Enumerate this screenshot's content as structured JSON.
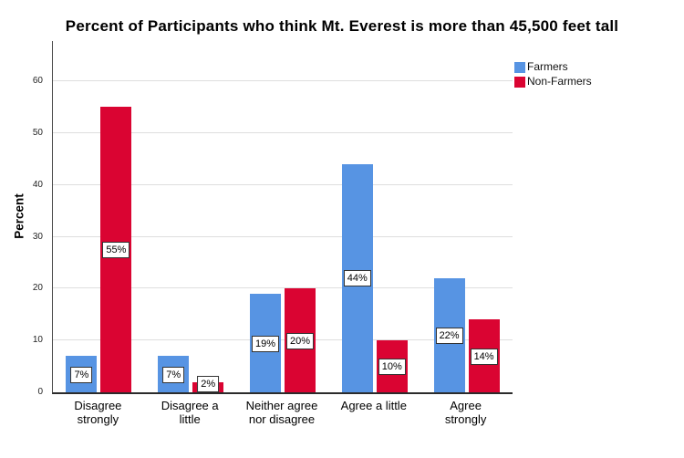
{
  "title": "Percent of Participants who think Mt. Everest is more than 45,500 feet tall",
  "y_axis": {
    "label": "Percent"
  },
  "legend": {
    "items": [
      {
        "label": "Farmers",
        "color": "#5794E3"
      },
      {
        "label": "Non-Farmers",
        "color": "#DA0432"
      }
    ]
  },
  "chart_data": {
    "type": "bar",
    "title": "Percent of Participants who think Mt. Everest is more than 45,500 feet tall",
    "categories": [
      "Disagree strongly",
      "Disagree a little",
      "Neither agree nor disagree",
      "Agree a little",
      "Agree strongly"
    ],
    "category_label_lines": [
      [
        "Disagree",
        "strongly"
      ],
      [
        "Disagree a",
        "little"
      ],
      [
        "Neither agree",
        "nor disagree"
      ],
      [
        "Agree a little"
      ],
      [
        "Agree",
        "strongly"
      ]
    ],
    "series": [
      {
        "name": "Farmers",
        "color": "#5794E3",
        "values": [
          7,
          7,
          19,
          44,
          22
        ],
        "labels": [
          "7%",
          "7%",
          "19%",
          "44%",
          "22%"
        ]
      },
      {
        "name": "Non-Farmers",
        "color": "#DA0432",
        "values": [
          55,
          2,
          20,
          10,
          14
        ],
        "labels": [
          "55%",
          "2%",
          "20%",
          "10%",
          "14%"
        ]
      }
    ],
    "xlabel": "",
    "ylabel": "Percent",
    "ylim": [
      0,
      68
    ],
    "yticks": [
      0,
      10,
      20,
      30,
      40,
      50,
      60
    ],
    "grid": true,
    "legend_position": "top-right-outside",
    "value_label_style": {
      "background": "#ffffff",
      "border": "#333333"
    }
  }
}
